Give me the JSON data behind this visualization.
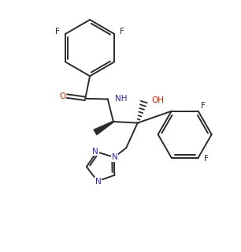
{
  "background": "#ffffff",
  "bond_color": "#2b2b2b",
  "atom_color_N": "#2b2baa",
  "atom_color_O": "#cc2200",
  "atom_color_F": "#2b2b2b",
  "line_width": 1.4,
  "font_size": 7.5,
  "figsize": [
    3.06,
    3.19
  ],
  "dpi": 100,
  "xlim": [
    0.0,
    7.5
  ],
  "ylim": [
    0.0,
    9.8
  ]
}
